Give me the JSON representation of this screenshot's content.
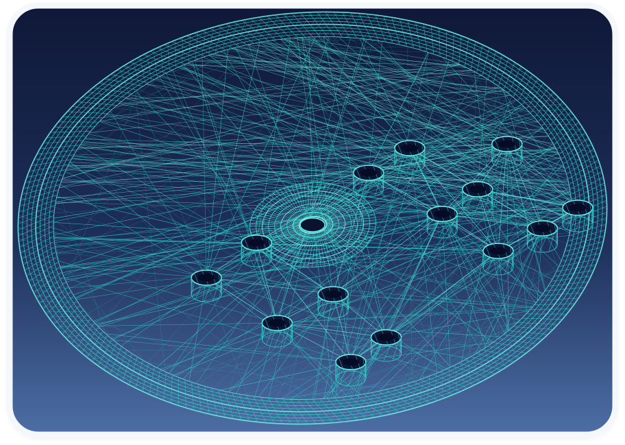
{
  "image": {
    "subject": "wireframe-disc-mesh",
    "colors": {
      "wire": "#2fd3c9",
      "wire_bright": "#6ff0e6",
      "background_top": "#101a3c",
      "background_bottom": "#4c6ea4",
      "frame_border": "#ffffff"
    },
    "features": {
      "center_hub": "hub-icon",
      "holes": "cylinder-hole-icon",
      "hole_count": 14
    }
  }
}
